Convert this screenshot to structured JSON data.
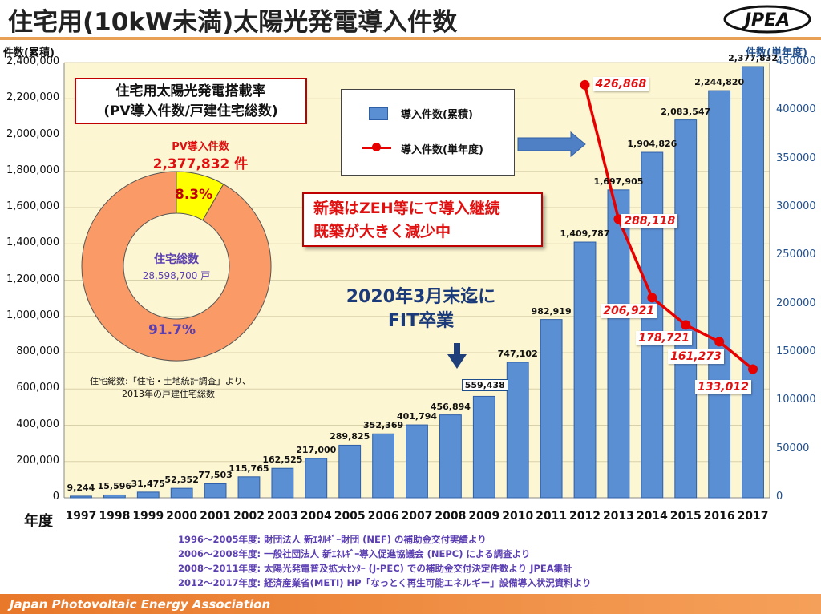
{
  "title": "住宅用(10kW未満)太陽光発電導入件数",
  "logo_text": "JPEA",
  "footer_org": "Japan Photovoltaic Energy Association",
  "chart_data": {
    "type": "bar",
    "ylabel_left": "件数(累積)",
    "ylabel_right": "件数(単年度)",
    "xlabel": "年度",
    "ylim_left": [
      0,
      2400000
    ],
    "ylim_right": [
      0,
      450000
    ],
    "yticks_left": [
      "2,400,000",
      "2,200,000",
      "2,000,000",
      "1,800,000",
      "1,600,000",
      "1,400,000",
      "1,200,000",
      "1,000,000",
      "800,000",
      "600,000",
      "400,000",
      "200,000",
      "0"
    ],
    "yticks_right": [
      "450000",
      "400000",
      "350000",
      "300000",
      "250000",
      "200000",
      "150000",
      "100000",
      "50000",
      "0"
    ],
    "categories": [
      "1997",
      "1998",
      "1999",
      "2000",
      "2001",
      "2002",
      "2003",
      "2004",
      "2005",
      "2006",
      "2007",
      "2008",
      "2009",
      "2010",
      "2011",
      "2012",
      "2013",
      "2014",
      "2015",
      "2016",
      "2017"
    ],
    "series": [
      {
        "name": "導入件数(累積)",
        "type": "bar",
        "axis": "left",
        "values": [
          9244,
          15596,
          31475,
          52352,
          77503,
          115765,
          162525,
          217000,
          289825,
          352369,
          401794,
          456894,
          559438,
          747102,
          982919,
          1409787,
          1697905,
          1904826,
          2083547,
          2244820,
          2377832
        ],
        "labels": [
          "9,244",
          "15,596",
          "31,475",
          "52,352",
          "77,503",
          "115,765",
          "162,525",
          "217,000",
          "289,825",
          "352,369",
          "401,794",
          "456,894",
          "559,438",
          "747,102",
          "982,919",
          "1,409,787",
          "1,697,905",
          "1,904,826",
          "2,083,547",
          "2,244,820",
          "2,377,832"
        ]
      },
      {
        "name": "導入件数(単年度)",
        "type": "line",
        "axis": "right",
        "x": [
          "2012",
          "2013",
          "2014",
          "2015",
          "2016",
          "2017"
        ],
        "values": [
          426868,
          288118,
          206921,
          178721,
          161273,
          133012
        ],
        "labels": [
          "426,868",
          "288,118",
          "206,921",
          "178,721",
          "161,273",
          "133,012"
        ]
      }
    ],
    "colors": {
      "bar": "#5b8fd4",
      "bar_edge": "#2f5fa6",
      "line": "#e60000",
      "plot_bg": "#fdf6d2"
    }
  },
  "pie": {
    "box_line1": "住宅用太陽光発電搭載率",
    "box_line2": "(PV導入件数/戸建住宅総数)",
    "pv_label": "PV導入件数",
    "pv_count": "2,377,832 件",
    "center_title": "住宅総数",
    "center_value": "28,598,700 戸",
    "slices": [
      {
        "label": "8.3%",
        "value": 8.3,
        "color": "#ffff00"
      },
      {
        "label": "91.7%",
        "value": 91.7,
        "color": "#fa9a66"
      }
    ],
    "note_line1": "住宅総数:「住宅・土地統計調査」より、",
    "note_line2": "2013年の戸建住宅総数"
  },
  "legend": {
    "bar_label": "導入件数(累積)",
    "line_label": "導入件数(単年度)"
  },
  "annotations": {
    "zeh_line1": "新築はZEH等にて導入継続",
    "zeh_line2": "既築が大きく減少中",
    "fit_line1": "2020年3月末迄に",
    "fit_line2": "FIT卒業"
  },
  "footnotes": [
    "1996～2005年度: 財団法人 新ｴﾈﾙｷﾞｰ財団 (NEF) の補助金交付実績より",
    "2006～2008年度: 一般社団法人 新ｴﾈﾙｷﾞｰ導入促進協議会 (NEPC) による調査より",
    "2008～2011年度: 太陽光発電普及拡大ｾﾝﾀｰ (J-PEC) での補助金交付決定件数より JPEA集計",
    "2012～2017年度: 経済産業省(METI) HP「なっとく再生可能エネルギー」設備導入状況資料より"
  ]
}
